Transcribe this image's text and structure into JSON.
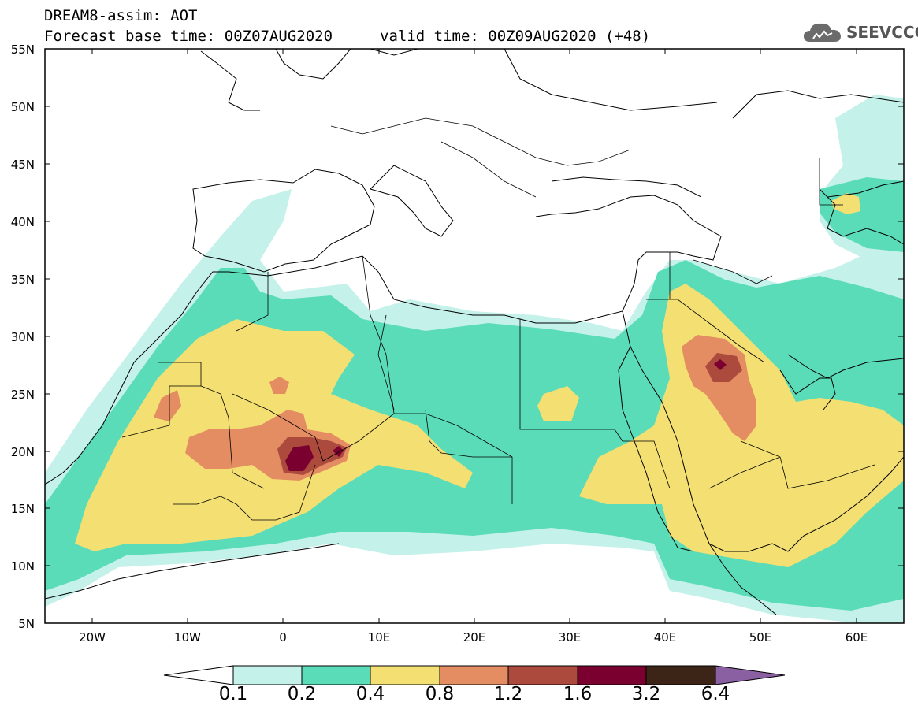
{
  "title": {
    "line1": "DREAM8-assim: AOT",
    "line2": "Forecast base time: 00Z07AUG2020",
    "valid": "valid time: 00Z09AUG2020 (+48)"
  },
  "logo": {
    "text": "SEEVCCC",
    "icon": "cloud-icon"
  },
  "axes": {
    "lat_labels": [
      "55N",
      "50N",
      "45N",
      "40N",
      "35N",
      "30N",
      "25N",
      "20N",
      "15N",
      "10N",
      "5N"
    ],
    "lon_labels": [
      "20W",
      "10W",
      "0",
      "10E",
      "20E",
      "30E",
      "40E",
      "50E",
      "60E"
    ],
    "lon_range": [
      -25,
      65
    ],
    "lat_range": [
      5,
      55
    ]
  },
  "colorbar": {
    "labels": [
      "0.1",
      "0.2",
      "0.4",
      "0.8",
      "1.2",
      "1.6",
      "3.2",
      "6.4"
    ],
    "colors": [
      "#ffffff",
      "#c4f1e9",
      "#5bdcb8",
      "#f4df72",
      "#e48d62",
      "#ac4a3d",
      "#7a0030",
      "#3c2417",
      "#8a60a2"
    ]
  },
  "level_colors": {
    "c01": "#c4f1e9",
    "c02": "#5bdcb8",
    "c04": "#f4df72",
    "c08": "#e48d62",
    "c12": "#ac4a3d",
    "c16": "#7a0030"
  }
}
